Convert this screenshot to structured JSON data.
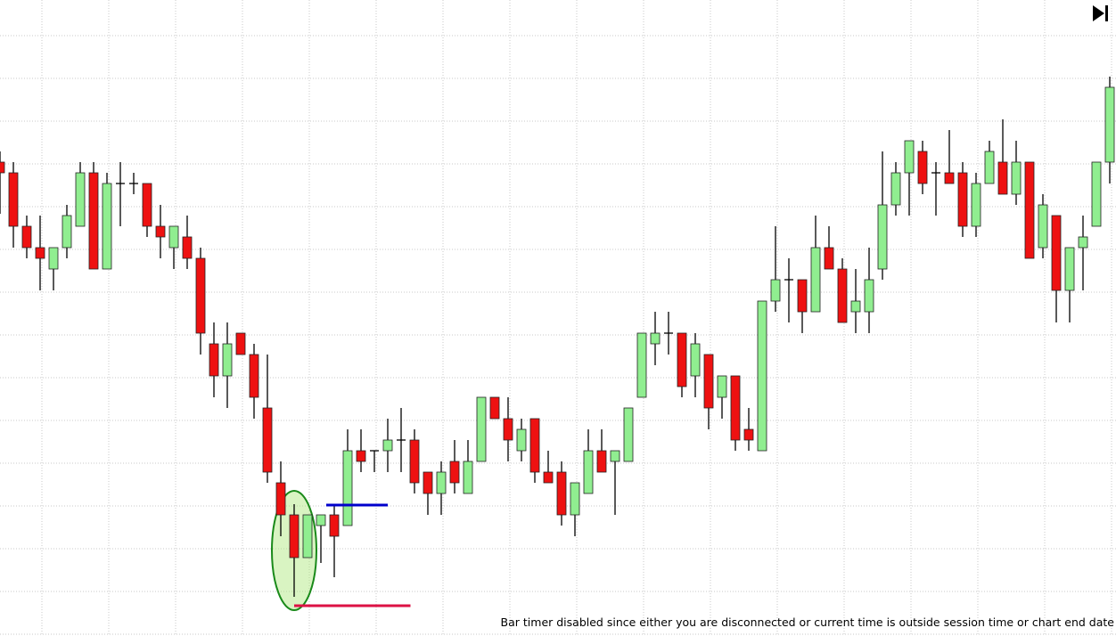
{
  "chart_data": {
    "type": "candlestick",
    "open": [
      532,
      520,
      460,
      436,
      412,
      436,
      460,
      520,
      412,
      508,
      508,
      508,
      460,
      436,
      448,
      424,
      328,
      292,
      340,
      316,
      256,
      172,
      136,
      88,
      124,
      136,
      124,
      208,
      208,
      208,
      220,
      220,
      184,
      160,
      196,
      160,
      196,
      268,
      244,
      208,
      244,
      184,
      184,
      136,
      160,
      208,
      196,
      196,
      268,
      328,
      340,
      340,
      292,
      316,
      268,
      292,
      232,
      208,
      376,
      400,
      400,
      364,
      436,
      412,
      364,
      364,
      412,
      484,
      520,
      544,
      520,
      520,
      520,
      460,
      508,
      532,
      496,
      532,
      436,
      472,
      388,
      436,
      460,
      532
    ],
    "high": [
      544,
      532,
      472,
      472,
      436,
      484,
      532,
      532,
      520,
      532,
      520,
      508,
      484,
      460,
      472,
      436,
      352,
      352,
      340,
      328,
      316,
      196,
      148,
      136,
      136,
      148,
      232,
      232,
      208,
      244,
      256,
      232,
      184,
      196,
      220,
      220,
      268,
      268,
      268,
      244,
      244,
      208,
      196,
      172,
      232,
      232,
      208,
      256,
      340,
      364,
      364,
      340,
      340,
      316,
      292,
      292,
      256,
      376,
      460,
      424,
      400,
      472,
      460,
      424,
      412,
      436,
      544,
      532,
      556,
      556,
      532,
      568,
      532,
      520,
      556,
      580,
      556,
      532,
      496,
      472,
      436,
      472,
      532,
      628
    ],
    "low": [
      474,
      436,
      424,
      388,
      388,
      424,
      460,
      412,
      412,
      460,
      496,
      448,
      424,
      412,
      412,
      316,
      268,
      256,
      316,
      244,
      172,
      112,
      44,
      88,
      82,
      66,
      124,
      184,
      184,
      184,
      184,
      160,
      136,
      136,
      160,
      160,
      196,
      244,
      196,
      196,
      172,
      172,
      124,
      112,
      160,
      184,
      136,
      196,
      268,
      304,
      316,
      268,
      268,
      232,
      244,
      208,
      208,
      208,
      364,
      352,
      340,
      364,
      412,
      352,
      340,
      340,
      400,
      472,
      472,
      496,
      472,
      508,
      448,
      448,
      508,
      496,
      484,
      424,
      424,
      352,
      352,
      388,
      460,
      508
    ],
    "close": [
      520,
      460,
      436,
      424,
      436,
      472,
      520,
      412,
      508,
      508,
      508,
      460,
      448,
      460,
      424,
      340,
      292,
      328,
      316,
      268,
      184,
      136,
      88,
      136,
      136,
      112,
      208,
      196,
      208,
      220,
      220,
      172,
      160,
      184,
      172,
      196,
      268,
      244,
      220,
      232,
      184,
      172,
      136,
      172,
      208,
      184,
      208,
      256,
      340,
      340,
      340,
      280,
      328,
      256,
      292,
      220,
      220,
      376,
      400,
      400,
      364,
      436,
      412,
      352,
      376,
      400,
      484,
      520,
      556,
      508,
      520,
      508,
      460,
      508,
      544,
      496,
      532,
      424,
      484,
      388,
      436,
      448,
      532,
      616
    ],
    "up_color": "#90ee90",
    "down_color": "#ee1111",
    "ylim": [
      0,
      714
    ],
    "yticks": [
      2,
      50,
      98,
      146,
      194,
      242,
      290,
      338,
      386,
      434,
      482,
      530,
      578,
      626,
      674
    ],
    "grid": true,
    "levels": [
      {
        "value": 147,
        "color": "#0000cc",
        "from": 24.4,
        "to": 29
      },
      {
        "value": 34,
        "color": "#dd1144",
        "from": 22,
        "to": 30.7
      }
    ],
    "status_text": "Bar timer disabled since either you are disconnected or current time is outside session time or chart end date"
  }
}
